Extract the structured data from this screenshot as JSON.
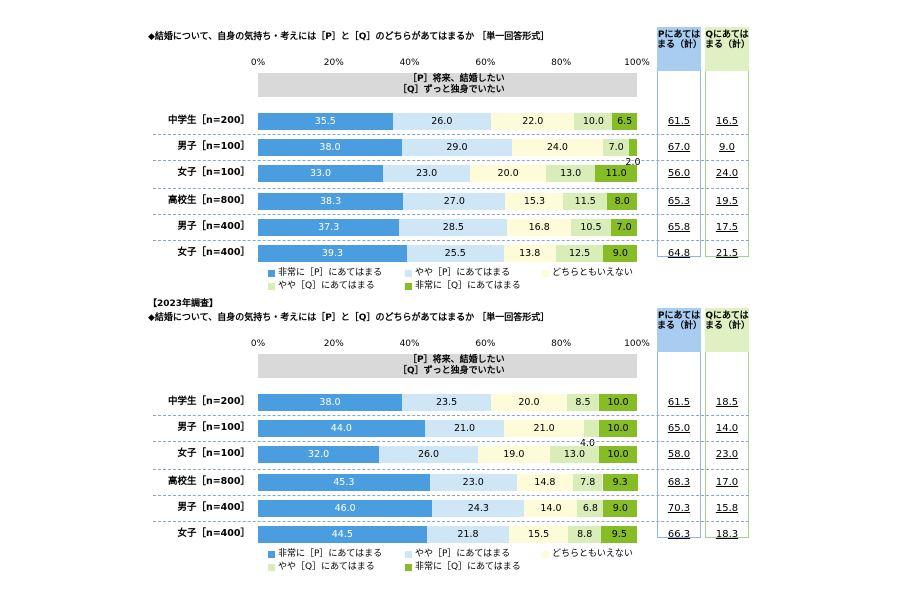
{
  "year_label": "【2023年調査】",
  "colors": {
    "very_p": "#4a9ee0",
    "some_p": "#cfe6f7",
    "neither": "#fdfbd8",
    "some_q": "#d9edb9",
    "very_q": "#86bc25",
    "band": "#d9d9d9",
    "col_p_header": "#a9cdf0",
    "col_q_header": "#dff0c2"
  },
  "chart_data": [
    {
      "type": "bar",
      "stacked": true,
      "orientation": "horizontal",
      "title": "◆結婚について、自身の気持ち・考えには［P］と［Q］のどちらがあてはまるか ［単一回答形式］",
      "xlim": [
        0,
        100
      ],
      "x_ticks": [
        "0%",
        "20%",
        "40%",
        "60%",
        "80%",
        "100%"
      ],
      "statement_p": "［P］将来、結婚したい",
      "statement_q": "［Q］ずっと独身でいたい",
      "categories": [
        "中学生［n=200］",
        "男子［n=100］",
        "女子［n=100］",
        "高校生［n=800］",
        "男子［n=400］",
        "女子［n=400］"
      ],
      "series": [
        {
          "name": "非常に［P］にあてはまる",
          "values": [
            35.5,
            38.0,
            33.0,
            38.3,
            37.3,
            39.3
          ]
        },
        {
          "name": "やや［P］にあてはまる",
          "values": [
            26.0,
            29.0,
            23.0,
            27.0,
            28.5,
            25.5
          ]
        },
        {
          "name": "どちらともいえない",
          "values": [
            22.0,
            24.0,
            20.0,
            15.3,
            16.8,
            13.8
          ]
        },
        {
          "name": "やや［Q］にあてはまる",
          "values": [
            10.0,
            7.0,
            13.0,
            11.5,
            10.5,
            12.5
          ]
        },
        {
          "name": "非常に［Q］にあてはまる",
          "values": [
            6.5,
            2.0,
            11.0,
            8.0,
            7.0,
            9.0
          ]
        }
      ],
      "totals": {
        "p_header": "Pにあてはまる（計）",
        "q_header": "Qにあてはまる（計）",
        "p": [
          "61.5",
          "67.0",
          "56.0",
          "65.3",
          "65.8",
          "64.8"
        ],
        "q": [
          "16.5",
          "9.0",
          "24.0",
          "19.5",
          "17.5",
          "21.5"
        ]
      }
    },
    {
      "type": "bar",
      "stacked": true,
      "orientation": "horizontal",
      "title": "◆結婚について、自身の気持ち・考えには［P］と［Q］のどちらがあてはまるか ［単一回答形式］",
      "xlim": [
        0,
        100
      ],
      "x_ticks": [
        "0%",
        "20%",
        "40%",
        "60%",
        "80%",
        "100%"
      ],
      "statement_p": "［P］将来、結婚したい",
      "statement_q": "［Q］ずっと独身でいたい",
      "categories": [
        "中学生［n=200］",
        "男子［n=100］",
        "女子［n=100］",
        "高校生［n=800］",
        "男子［n=400］",
        "女子［n=400］"
      ],
      "series": [
        {
          "name": "非常に［P］にあてはまる",
          "values": [
            38.0,
            44.0,
            32.0,
            45.3,
            46.0,
            44.5
          ]
        },
        {
          "name": "やや［P］にあてはまる",
          "values": [
            23.5,
            21.0,
            26.0,
            23.0,
            24.3,
            21.8
          ]
        },
        {
          "name": "どちらともいえない",
          "values": [
            20.0,
            21.0,
            19.0,
            14.8,
            14.0,
            15.5
          ]
        },
        {
          "name": "やや［Q］にあてはまる",
          "values": [
            8.5,
            4.0,
            13.0,
            7.8,
            6.8,
            8.8
          ]
        },
        {
          "name": "非常に［Q］にあてはまる",
          "values": [
            10.0,
            10.0,
            10.0,
            9.3,
            9.0,
            9.5
          ]
        }
      ],
      "totals": {
        "p_header": "Pにあてはまる（計）",
        "q_header": "Qにあてはまる（計）",
        "p": [
          "61.5",
          "65.0",
          "58.0",
          "68.3",
          "70.3",
          "66.3"
        ],
        "q": [
          "18.5",
          "14.0",
          "23.0",
          "17.0",
          "15.8",
          "18.3"
        ]
      }
    }
  ]
}
